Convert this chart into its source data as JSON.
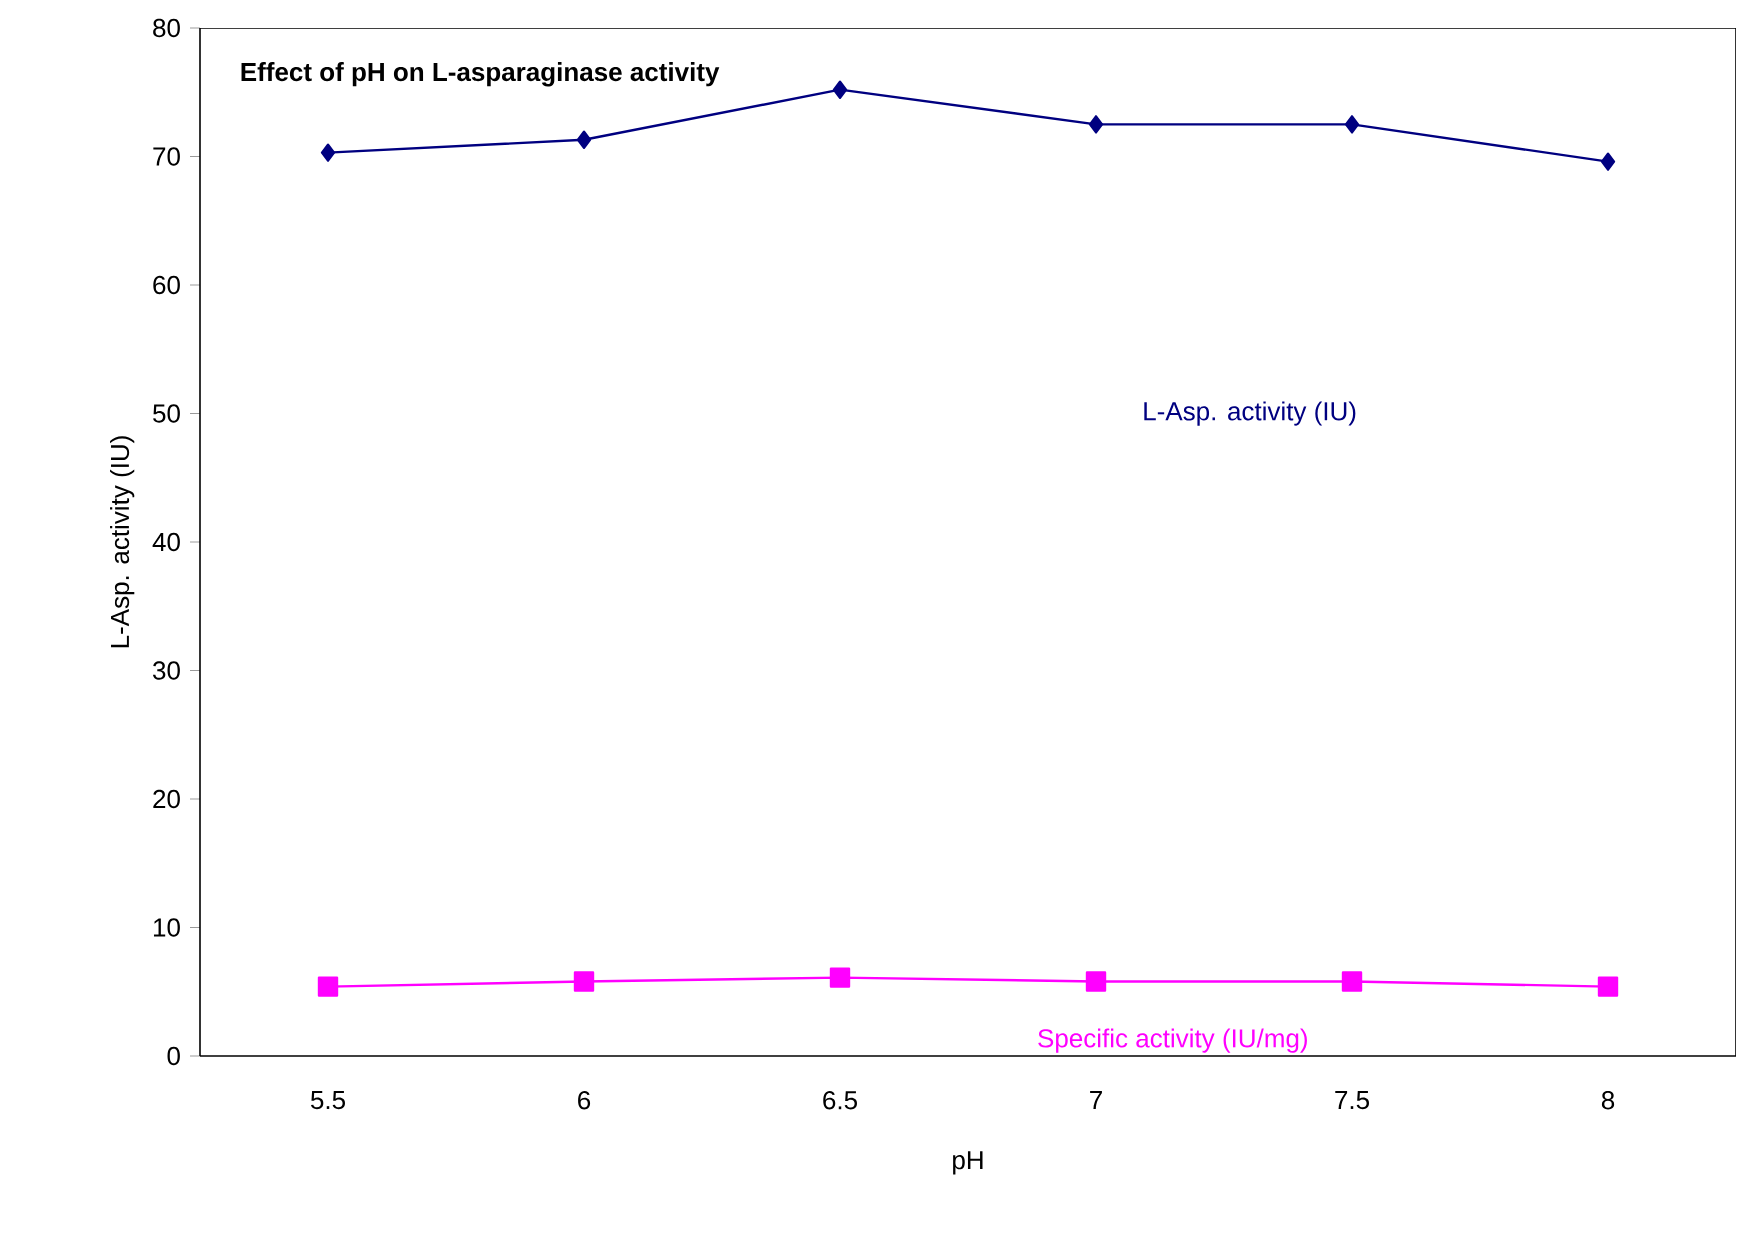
{
  "chart_data": {
    "type": "line",
    "title": "Effect of pH on L-asparaginase activity",
    "xlabel": "pH",
    "ylabel": "L-Asp. activity (IU)",
    "categories": [
      "5.5",
      "6",
      "6.5",
      "7",
      "7.5",
      "8"
    ],
    "series": [
      {
        "name": "L-Asp. activity (IU)",
        "color": "#000080",
        "marker": "diamond",
        "values": [
          70.3,
          71.3,
          75.2,
          72.5,
          72.5,
          69.6
        ]
      },
      {
        "name": "Specific activity (IU/mg)",
        "color": "#ff00ff",
        "marker": "square",
        "values": [
          5.4,
          5.8,
          6.1,
          5.8,
          5.8,
          5.4
        ]
      }
    ],
    "ylim": [
      0,
      80
    ],
    "yticks": [
      0,
      10,
      20,
      30,
      40,
      50,
      60,
      70,
      80
    ],
    "grid": false
  }
}
